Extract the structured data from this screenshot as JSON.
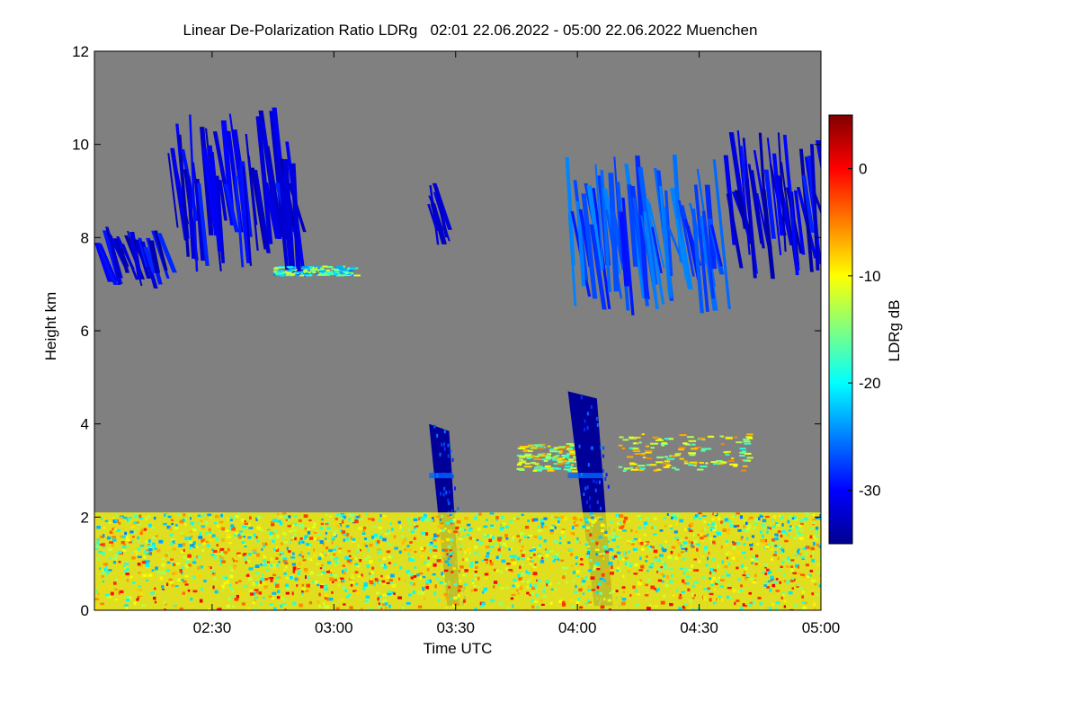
{
  "chart_data": {
    "type": "heatmap",
    "title": "Linear De-Polarization Ratio LDRg   02:01 22.06.2022 - 05:00 22.06.2022 Muenchen",
    "xlabel": "Time UTC",
    "ylabel": "Height km",
    "xlim": [
      "02:01",
      "05:00"
    ],
    "ylim": [
      0,
      12
    ],
    "x_ticks": [
      "02:30",
      "03:00",
      "03:30",
      "04:00",
      "04:30",
      "05:00"
    ],
    "y_ticks": [
      "0",
      "2",
      "4",
      "6",
      "8",
      "10",
      "12"
    ],
    "background_color": "#808080",
    "colorbar": {
      "label": "LDRg dB",
      "range": [
        -35,
        5
      ],
      "ticks": [
        "0",
        "-10",
        "-20",
        "-30"
      ],
      "colormap": "jet"
    },
    "features": [
      {
        "feature": "cirrus",
        "time_start": "02:01",
        "time_end": "02:17",
        "height_bottom_km": 6.9,
        "height_top_km": 8.3,
        "ldr_db": -31
      },
      {
        "feature": "cirrus",
        "time_start": "02:19",
        "time_end": "02:50",
        "height_bottom_km": 7.1,
        "height_top_km": 10.8,
        "ldr_db": -31
      },
      {
        "feature": "cirrus",
        "time_start": "03:23",
        "time_end": "03:25",
        "height_bottom_km": 7.8,
        "height_top_km": 9.3,
        "ldr_db": -30
      },
      {
        "feature": "cirrus",
        "time_start": "03:57",
        "time_end": "04:34",
        "height_bottom_km": 6.3,
        "height_top_km": 9.8,
        "ldr_db": -27
      },
      {
        "feature": "cirrus",
        "time_start": "04:36",
        "time_end": "05:00",
        "height_bottom_km": 7.1,
        "height_top_km": 10.3,
        "ldr_db": -31
      },
      {
        "feature": "aerosol_layer",
        "time_start": "02:45",
        "time_end": "03:05",
        "height_bottom_km": 7.2,
        "height_top_km": 7.4,
        "ldr_db": -18
      },
      {
        "feature": "aerosol_layer",
        "time_start": "03:45",
        "time_end": "04:00",
        "height_bottom_km": 3.0,
        "height_top_km": 3.6,
        "ldr_db": -12
      },
      {
        "feature": "aerosol_layer",
        "time_start": "04:10",
        "time_end": "04:42",
        "height_bottom_km": 3.0,
        "height_top_km": 3.8,
        "ldr_db": -12
      },
      {
        "feature": "precipitation_streak",
        "time_start": "03:23",
        "time_end": "03:32",
        "height_bottom_km": 0.1,
        "height_top_km": 4.0,
        "ldr_db": -34
      },
      {
        "feature": "precipitation_streak",
        "time_start": "03:57",
        "time_end": "04:10",
        "height_bottom_km": 0.1,
        "height_top_km": 4.7,
        "ldr_db": -34
      },
      {
        "feature": "boundary_layer",
        "time_start": "02:01",
        "time_end": "05:00",
        "height_bottom_km": 0.0,
        "height_top_km": 2.1,
        "ldr_db": -10
      }
    ]
  }
}
